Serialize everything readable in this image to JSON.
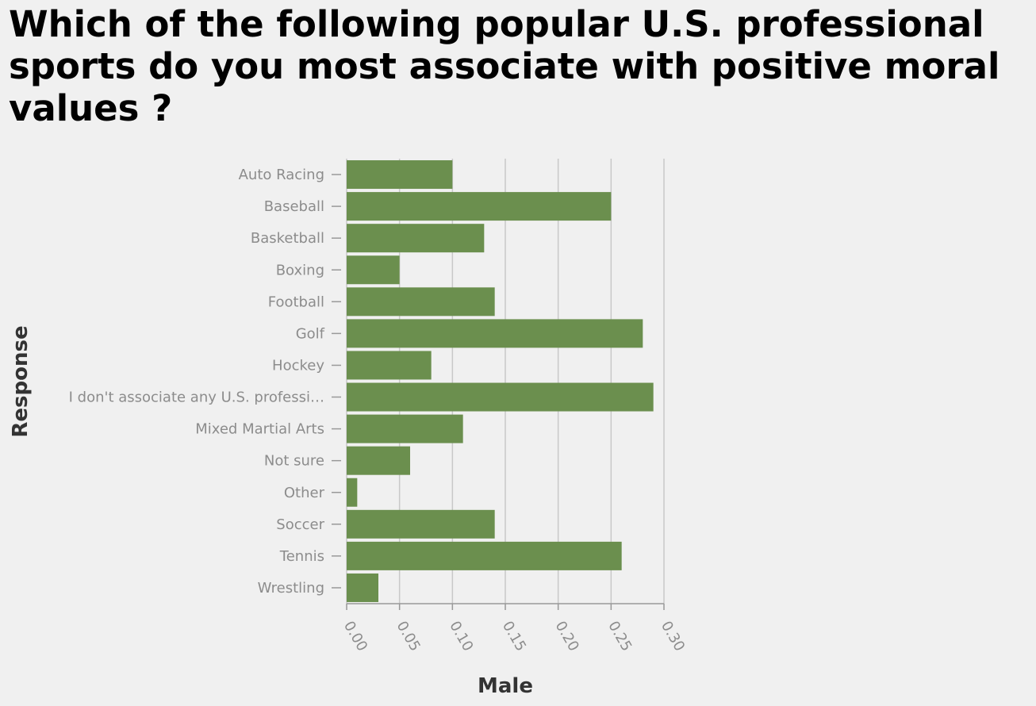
{
  "chart_data": {
    "type": "bar",
    "orientation": "horizontal",
    "title": "Which of the following popular U.S. professional sports do you most associate with positive moral values ?",
    "xlabel": "Male",
    "ylabel": "Response",
    "categories": [
      "Auto Racing",
      "Baseball",
      "Basketball",
      "Boxing",
      "Football",
      "Golf",
      "Hockey",
      "I don't associate any U.S. professi…",
      "Mixed Martial Arts",
      "Not sure",
      "Other",
      "Soccer",
      "Tennis",
      "Wrestling"
    ],
    "values": [
      0.1,
      0.25,
      0.13,
      0.05,
      0.14,
      0.28,
      0.08,
      0.29,
      0.11,
      0.06,
      0.01,
      0.14,
      0.26,
      0.03
    ],
    "xlim": [
      0,
      0.3
    ],
    "xticks": [
      "0.00",
      "0.05",
      "0.10",
      "0.15",
      "0.20",
      "0.25",
      "0.30"
    ],
    "grid": true,
    "bar_color": "#6b8f4e"
  }
}
